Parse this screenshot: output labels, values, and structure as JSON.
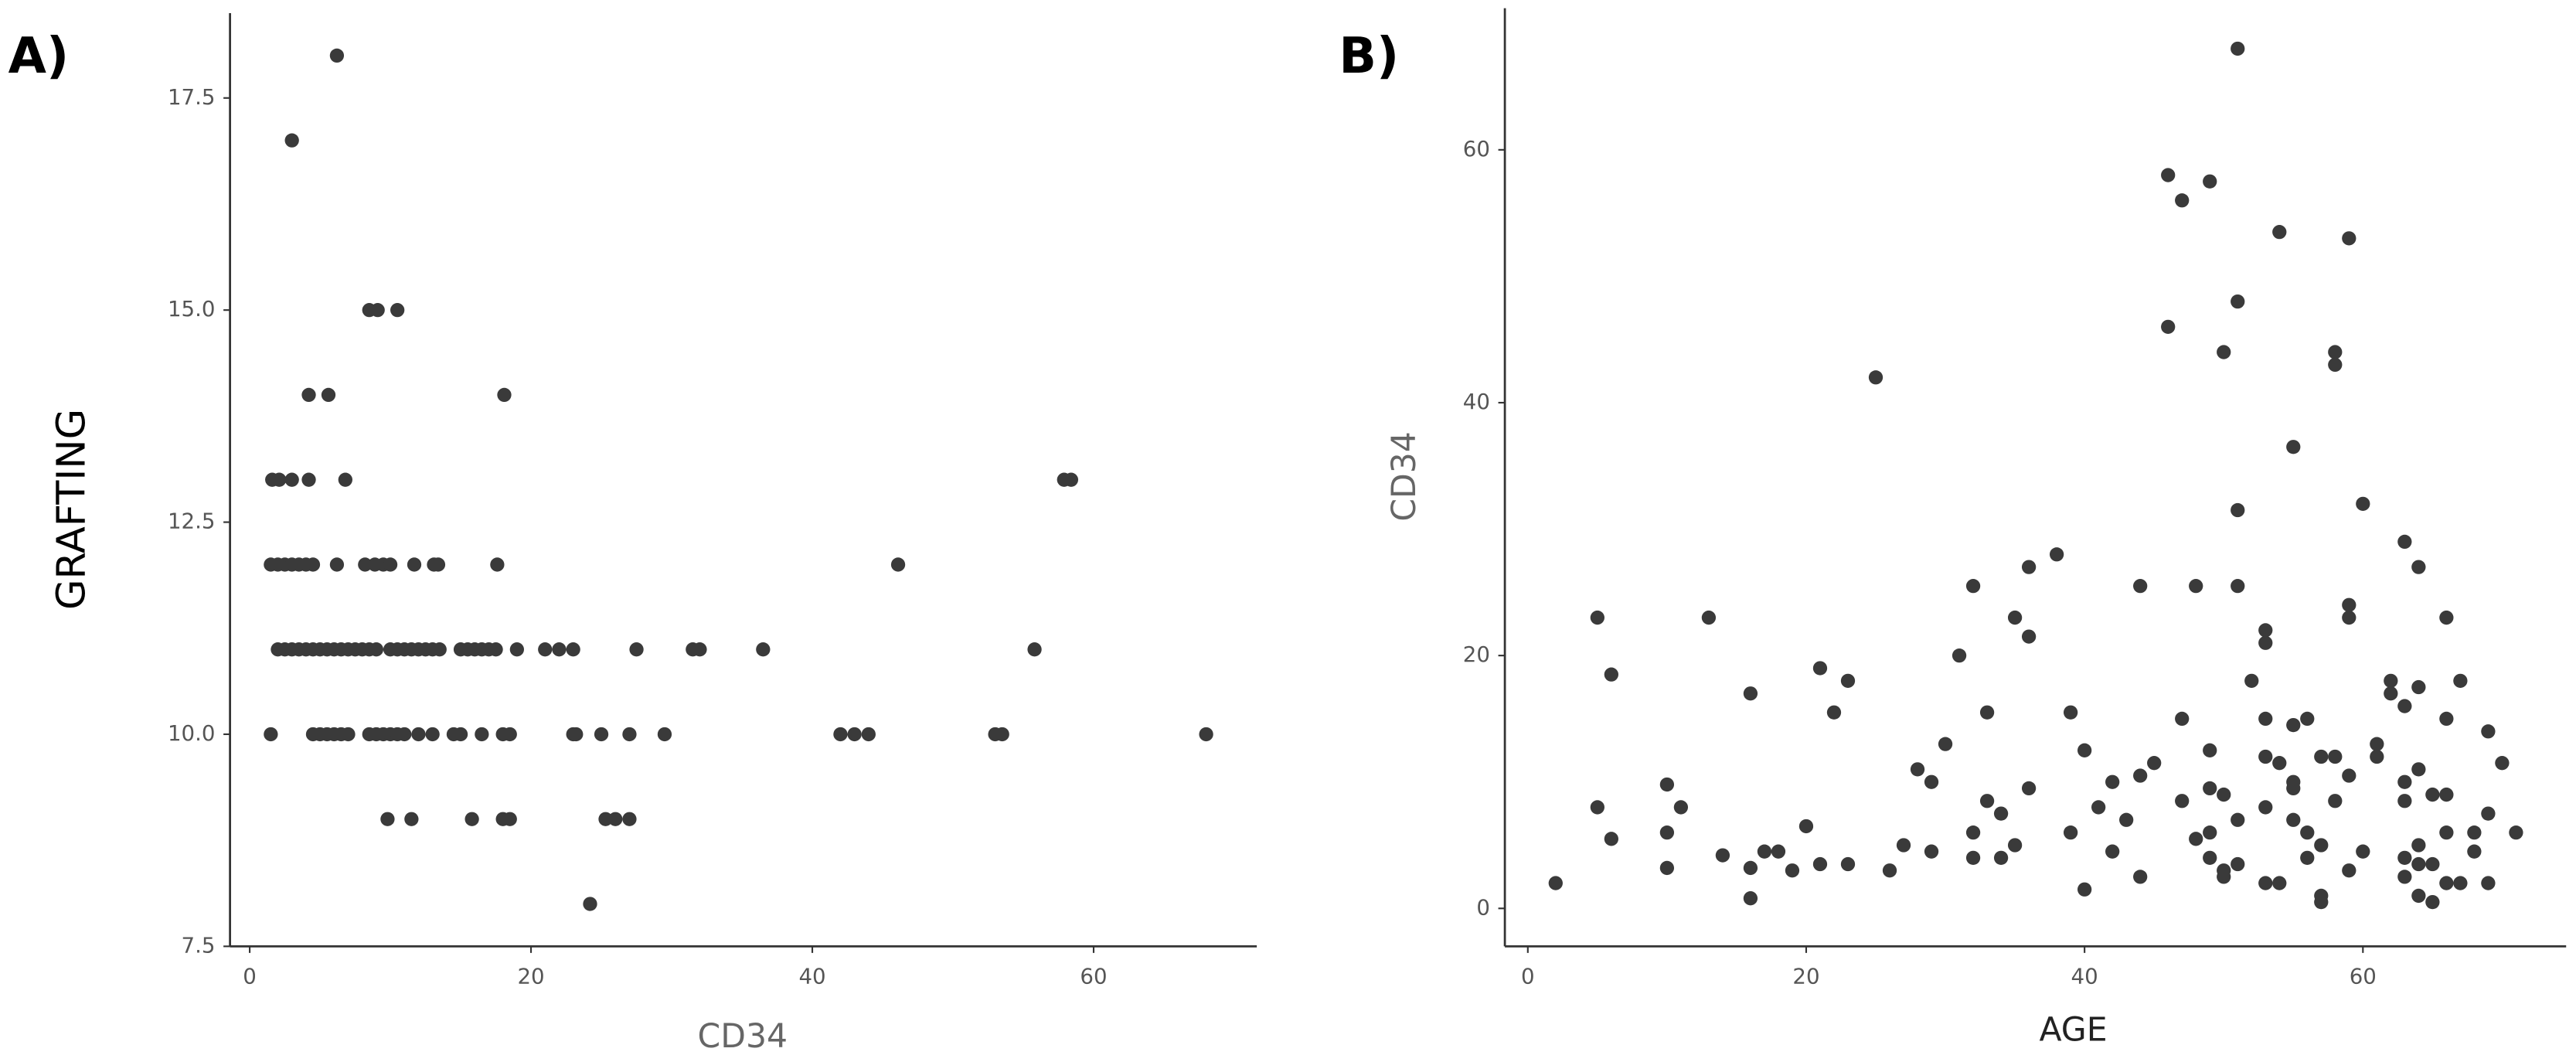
{
  "chart_data": [
    {
      "type": "scatter",
      "label": "A)",
      "x_label": "CD34",
      "y_label": "GRAFTING",
      "color": "#3a3a3a",
      "grid": false,
      "xlim": [
        -1.4,
        71.6
      ],
      "ylim": [
        7.5,
        18.5
      ],
      "xticks": [
        0,
        20,
        40,
        60
      ],
      "yticks": [
        7.5,
        {
          "value": 10,
          "label": "10.0"
        },
        12.5,
        {
          "value": 15,
          "label": "15.0"
        },
        17.5
      ],
      "x": [
        6.2,
        3.0,
        8.5,
        9.1,
        10.5,
        4.2,
        5.6,
        18.1,
        1.6,
        2.1,
        3.0,
        4.2,
        6.8,
        57.9,
        58.4,
        1.5,
        2,
        2.5,
        3,
        3.5,
        4,
        4.5,
        6.2,
        8.2,
        8.9,
        9.5,
        10,
        11.7,
        13.1,
        13.4,
        17.6,
        46.1,
        2,
        2.5,
        3,
        3.5,
        4,
        4.5,
        5,
        5.5,
        6,
        6.5,
        7,
        7.5,
        8,
        8.5,
        9,
        10,
        10.5,
        11,
        11.5,
        12,
        12.5,
        13,
        13.5,
        15,
        15.5,
        16,
        16.5,
        17,
        17.5,
        19,
        21,
        22,
        23,
        27.5,
        31.5,
        32,
        36.5,
        55.8,
        1.5,
        4.5,
        5,
        5.5,
        6,
        6.5,
        7,
        8.5,
        9,
        9.5,
        10,
        10.5,
        11,
        12,
        13,
        14.5,
        15,
        16.5,
        18,
        18.5,
        23,
        23.2,
        25,
        27,
        29.5,
        42,
        43,
        44,
        53,
        53.5,
        68,
        9.8,
        11.5,
        15.8,
        18,
        18.5,
        25.3,
        26,
        27,
        24.2
      ],
      "values": [
        18,
        17,
        15,
        15,
        15,
        14,
        14,
        14,
        13,
        13,
        13,
        13,
        13,
        13,
        13,
        12,
        12,
        12,
        12,
        12,
        12,
        12,
        12,
        12,
        12,
        12,
        12,
        12,
        12,
        12,
        12,
        12,
        11,
        11,
        11,
        11,
        11,
        11,
        11,
        11,
        11,
        11,
        11,
        11,
        11,
        11,
        11,
        11,
        11,
        11,
        11,
        11,
        11,
        11,
        11,
        11,
        11,
        11,
        11,
        11,
        11,
        11,
        11,
        11,
        11,
        11,
        11,
        11,
        11,
        11,
        10,
        10,
        10,
        10,
        10,
        10,
        10,
        10,
        10,
        10,
        10,
        10,
        10,
        10,
        10,
        10,
        10,
        10,
        10,
        10,
        10,
        10,
        10,
        10,
        10,
        10,
        10,
        10,
        10,
        10,
        10,
        9,
        9,
        9,
        9,
        9,
        9,
        9,
        9,
        8
      ]
    },
    {
      "type": "scatter",
      "label": "B)",
      "x_label": "AGE",
      "y_label": "CD34",
      "color": "#3a3a3a",
      "grid": false,
      "xlim": [
        -1.65,
        74.6
      ],
      "ylim": [
        -3,
        71.2
      ],
      "xticks": [
        0,
        20,
        40,
        60
      ],
      "yticks": [
        0,
        20,
        40,
        60
      ],
      "x": [
        2,
        5,
        5,
        6,
        6,
        10,
        10,
        10,
        11,
        13,
        14,
        16,
        16,
        16,
        17,
        18,
        19,
        20,
        21,
        21,
        22,
        23,
        23,
        25,
        26,
        27,
        28,
        29,
        29,
        30,
        31,
        32,
        32,
        32,
        33,
        33,
        34,
        34,
        35,
        35,
        36,
        36,
        36,
        38,
        39,
        39,
        40,
        40,
        41,
        42,
        42,
        43,
        44,
        44,
        44,
        45,
        46,
        46,
        47,
        47,
        47,
        48,
        48,
        49,
        49,
        49,
        49,
        49,
        50,
        50,
        50,
        50,
        51,
        51,
        51,
        51,
        51,
        51,
        52,
        53,
        53,
        53,
        53,
        53,
        53,
        54,
        54,
        54,
        55,
        55,
        55,
        55,
        55,
        56,
        56,
        56,
        57,
        57,
        57,
        57,
        58,
        58,
        58,
        58,
        59,
        59,
        59,
        59,
        59,
        60,
        60,
        61,
        61,
        62,
        62,
        63,
        63,
        63,
        63,
        63,
        63,
        64,
        64,
        64,
        64,
        64,
        64,
        65,
        65,
        65,
        66,
        66,
        66,
        66,
        66,
        67,
        67,
        68,
        68,
        69,
        69,
        69,
        70,
        71
      ],
      "values": [
        2,
        23,
        8,
        18.5,
        5.5,
        9.8,
        6,
        3.2,
        8,
        23,
        4.2,
        17,
        3.2,
        0.8,
        4.5,
        4.5,
        3,
        6.5,
        19,
        3.5,
        15.5,
        18,
        3.5,
        42,
        3,
        5,
        11,
        4.5,
        10,
        13,
        20,
        25.5,
        6,
        4,
        15.5,
        8.5,
        7.5,
        4,
        23,
        5,
        27,
        21.5,
        9.5,
        28,
        15.5,
        6,
        12.5,
        1.5,
        8,
        4.5,
        10,
        7,
        25.5,
        2.5,
        10.5,
        11.5,
        58,
        46,
        56,
        15,
        8.5,
        25.5,
        5.5,
        57.5,
        9.5,
        6,
        4,
        12.5,
        44,
        9,
        3,
        2.5,
        68,
        48,
        31.5,
        25.5,
        7,
        3.5,
        18,
        22,
        21,
        15,
        8,
        2,
        12,
        53.5,
        2,
        11.5,
        36.5,
        14.5,
        9.5,
        7,
        10,
        15,
        4,
        6,
        12,
        5,
        1,
        0.5,
        44,
        43,
        12,
        8.5,
        53,
        24,
        23,
        10.5,
        3,
        32,
        4.5,
        12,
        13,
        18,
        17,
        29,
        16,
        10,
        8.5,
        4,
        2.5,
        27,
        17.5,
        11,
        5,
        3.5,
        1,
        9,
        3.5,
        0.5,
        23,
        15,
        9,
        2,
        6,
        18,
        2,
        6,
        4.5,
        14,
        7.5,
        2,
        11.5,
        6
      ]
    }
  ]
}
